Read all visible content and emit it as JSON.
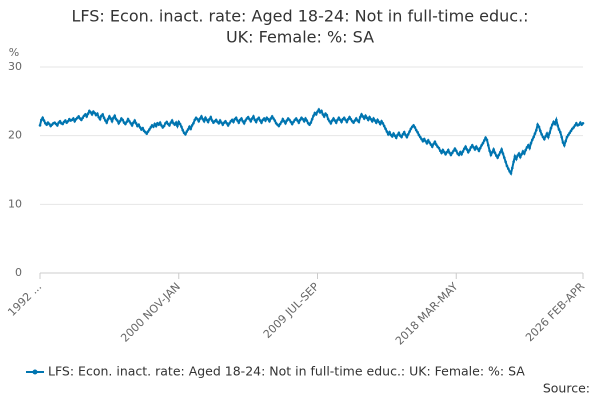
{
  "chart_data": {
    "type": "line",
    "title": [
      "LFS: Econ. inact. rate: Aged 18-24: Not in full-time educ.:",
      "UK: Female: %: SA"
    ],
    "y_unit": "%",
    "source": "Source:",
    "ylim": [
      0,
      30
    ],
    "yticks": [
      0,
      10,
      20,
      30
    ],
    "grid": true,
    "categories": [
      "1992 ...",
      null,
      null,
      null,
      null,
      null,
      null,
      null,
      null,
      null,
      null,
      null,
      null,
      null,
      null,
      null,
      null,
      null,
      null,
      null,
      null,
      null,
      null,
      null,
      null,
      null,
      null,
      null,
      null,
      null,
      null,
      null,
      null,
      null,
      null,
      null,
      null,
      null,
      null,
      null,
      null,
      null,
      null,
      null,
      null,
      null,
      null,
      null,
      null,
      null,
      null,
      null,
      null,
      null,
      null,
      null,
      null,
      null,
      null,
      null,
      null,
      null,
      null,
      null,
      null,
      null,
      null,
      null,
      null,
      null,
      null,
      null,
      null,
      null,
      null,
      null,
      null,
      null,
      null,
      null,
      null,
      null,
      null,
      null,
      null,
      null,
      null,
      null,
      null,
      null,
      null,
      null,
      null,
      null,
      null,
      null,
      null,
      null,
      null,
      null,
      null,
      null,
      null,
      null,
      "2000 NOV-JAN",
      null,
      null,
      null,
      null,
      null,
      null,
      null,
      null,
      null,
      null,
      null,
      null,
      null,
      null,
      null,
      null,
      null,
      null,
      null,
      null,
      null,
      null,
      null,
      null,
      null,
      null,
      null,
      null,
      null,
      null,
      null,
      null,
      null,
      null,
      null,
      null,
      null,
      null,
      null,
      null,
      null,
      null,
      null,
      null,
      null,
      null,
      null,
      null,
      null,
      null,
      null,
      null,
      null,
      null,
      null,
      null,
      null,
      null,
      null,
      null,
      null,
      null,
      null,
      null,
      null,
      null,
      null,
      null,
      null,
      null,
      null,
      null,
      null,
      null,
      null,
      null,
      null,
      null,
      null,
      null,
      null,
      null,
      null,
      null,
      null,
      null,
      null,
      null,
      null,
      null,
      null,
      null,
      null,
      null,
      null,
      null,
      null,
      null,
      null,
      null,
      null,
      null,
      null,
      "2009 JUL-SEP",
      null,
      null,
      null,
      null,
      null,
      null,
      null,
      null,
      null,
      null,
      null,
      null,
      null,
      null,
      null,
      null,
      null,
      null,
      null,
      null,
      null,
      null,
      null,
      null,
      null,
      null,
      null,
      null,
      null,
      null,
      null,
      null,
      null,
      null,
      null,
      null,
      null,
      null,
      null,
      null,
      null,
      null,
      null,
      null,
      null,
      null,
      null,
      null,
      null,
      null,
      null,
      null,
      null,
      null,
      null,
      null,
      null,
      null,
      null,
      null,
      null,
      null,
      null,
      null,
      null,
      null,
      null,
      null,
      null,
      null,
      null,
      null,
      null,
      null,
      null,
      null,
      null,
      null,
      null,
      null,
      null,
      null,
      null,
      null,
      null,
      null,
      null,
      null,
      null,
      null,
      null,
      null,
      null,
      null,
      null,
      null,
      null,
      null,
      null,
      null,
      null,
      null,
      null,
      "2018 MAR-MAY",
      null,
      null,
      null,
      null,
      null,
      null,
      null,
      null,
      null,
      null,
      null,
      null,
      null,
      null,
      null,
      null,
      null,
      null,
      null,
      null,
      null,
      null,
      null,
      null,
      null,
      null,
      null,
      null,
      null,
      null,
      null,
      null,
      null,
      null,
      null,
      null,
      null,
      null,
      null,
      null,
      null,
      null,
      null,
      null,
      null,
      null,
      null,
      null,
      null,
      null,
      null,
      null,
      null,
      null,
      null,
      null,
      null,
      null,
      null,
      null,
      null,
      null,
      null,
      null,
      null,
      null,
      null,
      null,
      null,
      null,
      null,
      null,
      null,
      null,
      null,
      null,
      null,
      null,
      null,
      null,
      null,
      null,
      null,
      null,
      null,
      null,
      null,
      null,
      null,
      null,
      null,
      null,
      null,
      null,
      "2026 FEB-APR"
    ],
    "series": [
      {
        "name": "LFS: Econ. inact. rate: Aged 18-24: Not in full-time educ.: UK: Female: %: SA",
        "color": "#0075b0",
        "values": [
          21.5,
          22.3,
          22.6,
          22.2,
          21.8,
          21.6,
          21.9,
          21.7,
          21.4,
          21.6,
          21.8,
          21.9,
          21.7,
          21.5,
          21.9,
          22.1,
          21.8,
          21.7,
          22.0,
          22.2,
          21.9,
          22.1,
          22.4,
          22.2,
          22.3,
          22.5,
          22.1,
          22.4,
          22.6,
          22.8,
          22.5,
          22.3,
          22.6,
          22.9,
          23.1,
          22.8,
          23.2,
          23.6,
          23.4,
          23.1,
          23.5,
          23.3,
          23.0,
          23.2,
          22.7,
          22.4,
          22.9,
          23.1,
          22.6,
          22.2,
          21.9,
          22.4,
          22.8,
          22.5,
          22.1,
          22.6,
          22.9,
          22.4,
          22.2,
          21.8,
          22.1,
          22.5,
          22.3,
          21.9,
          21.7,
          22.0,
          22.4,
          22.1,
          21.8,
          21.5,
          21.9,
          22.2,
          21.8,
          21.4,
          21.6,
          21.2,
          20.9,
          21.1,
          20.7,
          20.5,
          20.3,
          20.6,
          20.9,
          21.2,
          21.5,
          21.3,
          21.7,
          21.4,
          21.8,
          21.6,
          21.9,
          21.5,
          21.2,
          21.4,
          21.8,
          22.0,
          21.7,
          21.5,
          21.9,
          22.2,
          21.8,
          21.6,
          21.9,
          21.4,
          22.0,
          21.7,
          21.3,
          20.8,
          20.4,
          20.2,
          20.6,
          20.9,
          21.3,
          21.0,
          21.5,
          21.8,
          22.3,
          22.6,
          22.4,
          22.1,
          22.5,
          22.8,
          22.4,
          22.1,
          22.6,
          22.3,
          22.0,
          22.4,
          22.7,
          22.2,
          21.9,
          22.1,
          22.3,
          22.0,
          21.8,
          22.2,
          21.9,
          21.6,
          21.9,
          22.1,
          21.8,
          21.5,
          21.8,
          22.1,
          22.3,
          22.0,
          22.4,
          22.6,
          22.2,
          21.9,
          22.3,
          22.5,
          22.1,
          21.8,
          22.2,
          22.5,
          22.7,
          22.4,
          22.1,
          22.5,
          22.8,
          22.3,
          22.0,
          22.4,
          22.6,
          22.2,
          21.9,
          22.3,
          22.5,
          22.2,
          22.6,
          22.4,
          22.1,
          22.5,
          22.8,
          22.5,
          22.2,
          21.8,
          21.6,
          21.4,
          21.7,
          22.0,
          22.4,
          22.1,
          21.8,
          22.2,
          22.5,
          22.3,
          22.0,
          21.7,
          22.0,
          22.3,
          22.5,
          22.2,
          21.9,
          22.3,
          22.6,
          22.4,
          22.1,
          22.5,
          22.2,
          21.8,
          21.6,
          21.9,
          22.4,
          22.9,
          23.3,
          23.1,
          23.5,
          23.8,
          23.4,
          23.6,
          23.1,
          22.8,
          23.2,
          23.0,
          22.4,
          22.1,
          21.8,
          22.2,
          22.5,
          22.2,
          21.9,
          22.3,
          22.6,
          22.3,
          22.0,
          22.4,
          22.6,
          22.3,
          22.0,
          22.4,
          22.7,
          22.4,
          22.1,
          21.9,
          22.2,
          22.5,
          22.2,
          22.0,
          22.7,
          23.1,
          22.8,
          22.5,
          22.9,
          22.6,
          22.3,
          22.7,
          22.4,
          22.1,
          22.5,
          22.2,
          21.9,
          22.3,
          22.0,
          21.7,
          22.1,
          21.8,
          21.4,
          21.0,
          20.6,
          20.2,
          20.5,
          20.1,
          19.9,
          20.3,
          20.0,
          19.7,
          20.1,
          20.4,
          20.0,
          19.8,
          20.2,
          20.5,
          20.1,
          19.8,
          20.2,
          20.6,
          21.0,
          21.3,
          21.5,
          21.2,
          20.8,
          20.5,
          20.1,
          19.8,
          19.5,
          19.2,
          19.5,
          19.2,
          18.9,
          19.3,
          19.0,
          18.7,
          18.4,
          18.8,
          19.1,
          18.7,
          18.4,
          18.2,
          17.8,
          17.5,
          17.9,
          17.6,
          17.3,
          17.6,
          17.9,
          17.5,
          17.2,
          17.5,
          17.8,
          18.1,
          17.8,
          17.4,
          17.2,
          17.6,
          17.3,
          17.7,
          18.1,
          18.4,
          18.0,
          17.6,
          17.9,
          18.3,
          18.6,
          18.3,
          18.0,
          18.4,
          18.1,
          17.8,
          18.2,
          18.6,
          18.9,
          19.3,
          19.7,
          19.4,
          18.6,
          17.8,
          17.2,
          17.6,
          18.0,
          17.5,
          17.1,
          16.8,
          17.2,
          17.6,
          18.0,
          17.4,
          16.8,
          16.2,
          15.6,
          15.2,
          14.8,
          14.5,
          15.3,
          16.2,
          17.0,
          16.6,
          17.1,
          17.4,
          16.9,
          17.3,
          17.7,
          17.4,
          17.9,
          18.3,
          18.6,
          18.2,
          18.9,
          19.4,
          19.8,
          20.3,
          20.8,
          21.6,
          21.3,
          20.7,
          20.2,
          19.8,
          19.5,
          19.9,
          20.3,
          19.8,
          20.4,
          21.1,
          21.6,
          22.0,
          21.7,
          22.3,
          21.5,
          20.9,
          20.5,
          19.8,
          19.0,
          18.6,
          19.2,
          19.8,
          20.1,
          20.4,
          20.7,
          21.0,
          21.2,
          21.5,
          21.8,
          21.5,
          21.6,
          21.9,
          21.6,
          21.8
        ]
      }
    ]
  }
}
